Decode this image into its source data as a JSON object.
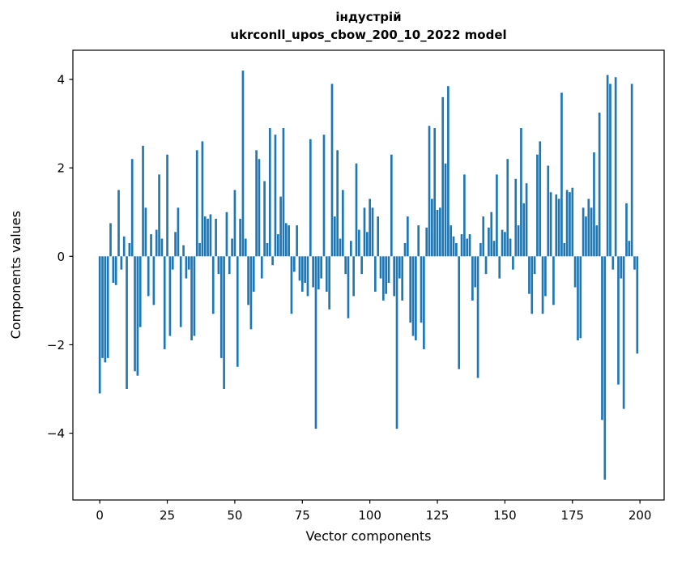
{
  "chart_data": {
    "type": "bar",
    "title_line1": "індустрій",
    "title_line2": "ukrconll_upos_cbow_200_10_2022 model",
    "xlabel": "Vector components",
    "ylabel": "Components values",
    "bar_color": "#1f77b4",
    "xlim": [
      -9.95,
      208.95
    ],
    "ylim": [
      -5.51,
      4.66
    ],
    "xticks": [
      0,
      25,
      50,
      75,
      100,
      125,
      150,
      175,
      200
    ],
    "xticklabels": [
      "0",
      "25",
      "50",
      "75",
      "100",
      "125",
      "150",
      "175",
      "200"
    ],
    "yticks": [
      -4,
      -2,
      0,
      2,
      4
    ],
    "yticklabels": [
      "−4",
      "−2",
      "0",
      "2",
      "4"
    ],
    "x_note": "x is the component index 0..199",
    "values": [
      -3.1,
      -2.3,
      -2.4,
      -2.3,
      0.75,
      -0.6,
      -0.65,
      1.5,
      -0.3,
      0.45,
      -3.0,
      0.3,
      2.2,
      -2.6,
      -2.7,
      -1.6,
      2.5,
      1.1,
      -0.9,
      0.5,
      -1.1,
      0.6,
      1.85,
      0.4,
      -2.1,
      2.3,
      -1.8,
      -0.3,
      0.55,
      1.1,
      -1.6,
      0.25,
      -0.5,
      -0.3,
      -1.9,
      -1.8,
      2.4,
      0.3,
      2.6,
      0.9,
      0.85,
      0.95,
      -1.3,
      0.85,
      -0.4,
      -2.3,
      -3.0,
      1.0,
      -0.4,
      0.4,
      1.5,
      -2.5,
      0.85,
      4.2,
      0.4,
      -1.1,
      -1.65,
      -0.8,
      2.4,
      2.2,
      -0.5,
      1.7,
      0.3,
      2.9,
      -0.2,
      2.75,
      0.5,
      1.35,
      2.9,
      0.75,
      0.7,
      -1.3,
      -0.35,
      0.7,
      -0.55,
      -0.8,
      -0.6,
      -0.9,
      2.65,
      -0.7,
      -3.9,
      -0.75,
      -0.5,
      2.75,
      -0.8,
      -1.2,
      3.9,
      0.9,
      2.4,
      0.4,
      1.5,
      -0.4,
      -1.4,
      0.35,
      -0.9,
      2.1,
      0.6,
      -0.4,
      1.1,
      0.55,
      1.3,
      1.1,
      -0.8,
      0.9,
      -0.5,
      -1.0,
      -0.85,
      -0.6,
      2.3,
      -0.9,
      -3.9,
      -0.5,
      -1.0,
      0.3,
      0.9,
      -1.5,
      -1.8,
      -1.9,
      0.7,
      -1.5,
      -2.1,
      0.65,
      2.95,
      1.3,
      2.9,
      1.05,
      1.1,
      3.6,
      2.1,
      3.85,
      0.7,
      0.45,
      0.3,
      -2.55,
      0.5,
      1.85,
      0.4,
      0.5,
      -1.0,
      -0.7,
      -2.75,
      0.3,
      0.9,
      -0.4,
      0.65,
      1.0,
      0.35,
      1.85,
      -0.5,
      0.6,
      0.55,
      2.2,
      0.4,
      -0.3,
      1.75,
      0.7,
      2.9,
      1.2,
      1.65,
      -0.85,
      -1.3,
      -0.4,
      2.3,
      2.6,
      -1.3,
      -0.9,
      2.05,
      1.45,
      -1.1,
      1.4,
      1.3,
      3.7,
      0.3,
      1.5,
      1.45,
      1.55,
      -0.7,
      -1.9,
      -1.85,
      1.1,
      0.9,
      1.3,
      1.1,
      2.35,
      0.7,
      3.25,
      -3.7,
      -5.05,
      4.1,
      3.9,
      -0.3,
      4.05,
      -2.9,
      -0.5,
      -3.45,
      1.2,
      0.35,
      3.9,
      -0.3,
      -2.2
    ]
  }
}
